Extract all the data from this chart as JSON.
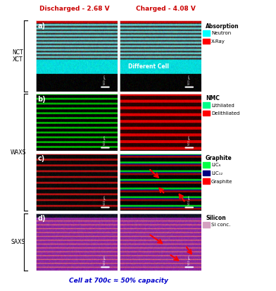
{
  "title_top": "Discharged - 2.68 V",
  "title_top2": "Charged - 4.08 V",
  "title_bottom": "Cell at 700c ≈ 50% capacity",
  "row_labels_left": [
    "NCT\nXCT",
    "WAXS",
    "SAXS"
  ],
  "panel_labels": [
    "a)",
    "b)",
    "c)",
    "d)"
  ],
  "legend_titles": [
    "Absorption",
    "NMC",
    "Graphite",
    "Silicon"
  ],
  "absorption_legend": [
    [
      "#00ffff",
      "Neutron"
    ],
    [
      "#ff0000",
      "X-Ray"
    ]
  ],
  "nmc_legend": [
    [
      "#00ff88",
      "Lithliated"
    ],
    [
      "#ff0000",
      "Delithliated"
    ]
  ],
  "graphite_legend": [
    [
      "#00ff44",
      "LIC₆"
    ],
    [
      "#000080",
      "LIC₁₂"
    ],
    [
      "#ff0000",
      "Graphite"
    ]
  ],
  "silicon_legend": [
    [
      "#d4a0c0",
      "Si conc."
    ]
  ],
  "diff_cell_text": "Different Cell",
  "bg_color": "#ffffff",
  "fig_width": 3.92,
  "fig_height": 4.13,
  "title_color": "#cc0000",
  "bottom_title_color": "#0000cc"
}
